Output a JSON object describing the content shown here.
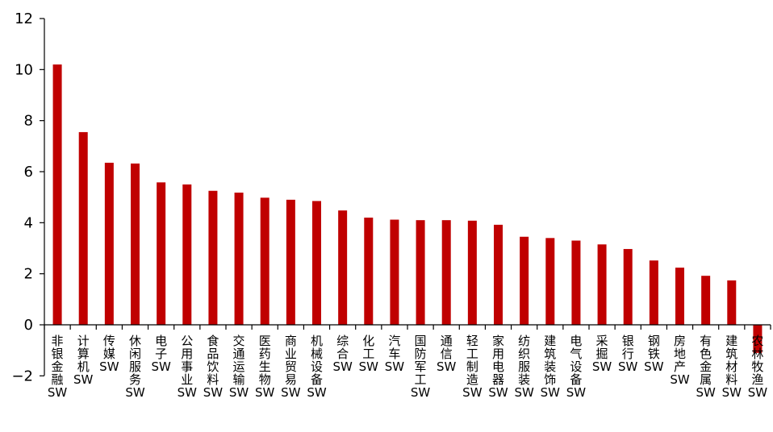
{
  "chart_data": {
    "type": "bar",
    "categories": [
      "非银金融SW",
      "计算机SW",
      "传媒SW",
      "休闲服务SW",
      "电子SW",
      "公用事业SW",
      "食品饮料SW",
      "交通运输SW",
      "医药生物SW",
      "商业贸易SW",
      "机械设备SW",
      "综合SW",
      "化工SW",
      "汽车SW",
      "国防军工SW",
      "通信SW",
      "轻工制造SW",
      "家用电器SW",
      "纺织服装SW",
      "建筑装饰SW",
      "电气设备SW",
      "采掘SW",
      "银行SW",
      "钢铁SW",
      "房地产SW",
      "有色金属SW",
      "建筑材料SW",
      "农林牧渔SW"
    ],
    "values": [
      10.2,
      7.55,
      6.35,
      6.32,
      5.58,
      5.5,
      5.25,
      5.18,
      4.98,
      4.9,
      4.85,
      4.48,
      4.2,
      4.12,
      4.1,
      4.1,
      4.08,
      3.92,
      3.45,
      3.4,
      3.3,
      3.15,
      2.97,
      2.52,
      2.24,
      1.92,
      1.74,
      -1.1
    ],
    "yticks": [
      "−2",
      "0",
      "2",
      "4",
      "6",
      "8",
      "10",
      "12"
    ],
    "ylim": [
      -2,
      12
    ],
    "bar_color": "#C00000",
    "title": "",
    "xlabel": "",
    "ylabel": "",
    "grid": false,
    "legend": "none"
  }
}
